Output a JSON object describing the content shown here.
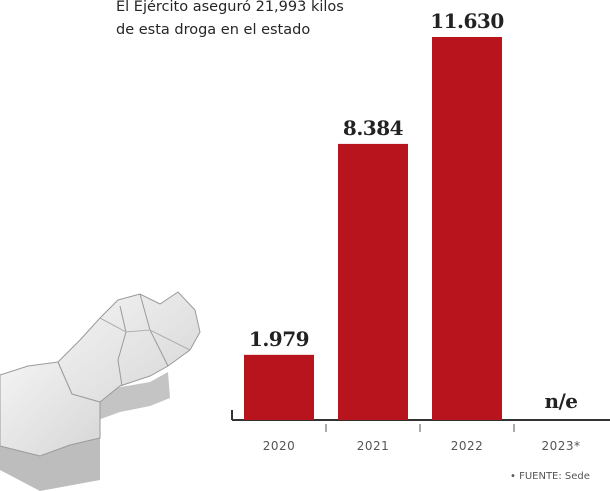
{
  "header": {
    "subtitle_line1": "El Ejército aseguró 21,993 kilos",
    "subtitle_line2": "de esta droga en el estado"
  },
  "source": "• FUENTE: Sede",
  "colors": {
    "bar": "#b8141e",
    "axis": "#333333"
  },
  "chart_data": {
    "type": "bar",
    "categories": [
      "2020",
      "2021",
      "2022",
      "2023*"
    ],
    "values": [
      1979,
      8384,
      11630,
      null
    ],
    "value_labels": [
      "1.979",
      "8.384",
      "11.630",
      "n/e"
    ],
    "ylim": [
      0,
      11630
    ],
    "grid": false,
    "legend": "none"
  }
}
